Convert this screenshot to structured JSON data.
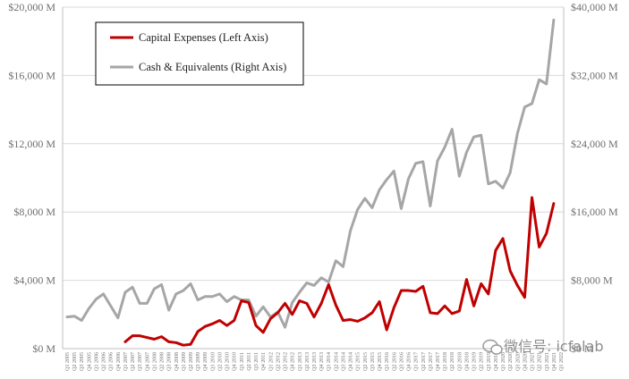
{
  "chart_data": {
    "type": "line",
    "x": [
      "Q1 2005",
      "Q2 2005",
      "Q3 2005",
      "Q4 2005",
      "Q1 2006",
      "Q2 2006",
      "Q3 2006",
      "Q4 2006",
      "Q1 2007",
      "Q2 2007",
      "Q3 2007",
      "Q4 2007",
      "Q1 2008",
      "Q2 2008",
      "Q3 2008",
      "Q4 2008",
      "Q1 2009",
      "Q2 2009",
      "Q3 2009",
      "Q4 2009",
      "Q1 2010",
      "Q2 2010",
      "Q3 2010",
      "Q4 2010",
      "Q1 2011",
      "Q2 2011",
      "Q3 2011",
      "Q4 2011",
      "Q1 2012",
      "Q2 2012",
      "Q3 2012",
      "Q4 2012",
      "Q1 2013",
      "Q2 2013",
      "Q3 2013",
      "Q4 2013",
      "Q1 2014",
      "Q2 2014",
      "Q3 2014",
      "Q4 2014",
      "Q1 2015",
      "Q2 2015",
      "Q3 2015",
      "Q4 2015",
      "Q1 2016",
      "Q2 2016",
      "Q3 2016",
      "Q4 2016",
      "Q1 2017",
      "Q2 2017",
      "Q3 2017",
      "Q4 2017",
      "Q1 2018",
      "Q2 2018",
      "Q3 2018",
      "Q4 2018",
      "Q1 2019",
      "Q2 2019",
      "Q3 2019",
      "Q4 2019",
      "Q1 2020",
      "Q2 2020",
      "Q3 2020",
      "Q4 2020",
      "Q1 2021",
      "Q2 2021",
      "Q3 2021",
      "Q4 2021",
      "Q1 2022"
    ],
    "series": [
      {
        "name": "Capital Expenses (Left Axis)",
        "axis": "left",
        "color": "#c00000",
        "values": [
          null,
          null,
          null,
          null,
          null,
          null,
          null,
          null,
          400,
          750,
          750,
          650,
          550,
          700,
          400,
          350,
          200,
          250,
          1000,
          1300,
          1450,
          1650,
          1350,
          1650,
          2800,
          2700,
          1350,
          950,
          1750,
          2100,
          2650,
          2000,
          2800,
          2650,
          1850,
          2650,
          3750,
          2550,
          1650,
          1700,
          1600,
          1800,
          2100,
          2750,
          1100,
          2400,
          3400,
          3400,
          3350,
          3650,
          2100,
          2050,
          2500,
          2050,
          2200,
          4050,
          2500,
          3800,
          3200,
          5750,
          6450,
          4550,
          3700,
          3000,
          8850,
          5950,
          6750,
          8500,
          null
        ]
      },
      {
        "name": "Cash & Equivalents (Right Axis)",
        "axis": "right",
        "color": "#a6a6a6",
        "values": [
          3700,
          3800,
          3300,
          4700,
          5800,
          6400,
          5000,
          3600,
          6600,
          7200,
          5300,
          5300,
          7000,
          7500,
          4500,
          6400,
          6800,
          7600,
          5700,
          6100,
          6100,
          6400,
          5500,
          6100,
          5700,
          5700,
          3800,
          4900,
          3700,
          4300,
          2500,
          5400,
          6600,
          7700,
          7400,
          8300,
          7800,
          10300,
          9600,
          13800,
          16300,
          17600,
          16500,
          18600,
          19800,
          20800,
          16400,
          19900,
          21700,
          21900,
          16700,
          22000,
          23600,
          25700,
          20200,
          23000,
          24800,
          25000,
          19300,
          19600,
          18800,
          20600,
          25200,
          28300,
          28700,
          31500,
          31000,
          38500,
          null
        ]
      }
    ],
    "y_left": {
      "ylim": [
        0,
        20000
      ],
      "ticks": [
        "$0 M",
        "$4,000 M",
        "$8,000 M",
        "$12,000 M",
        "$16,000 M",
        "$20,000 M"
      ]
    },
    "y_right": {
      "ylim": [
        0,
        40000
      ],
      "ticks": [
        "$0 M",
        "$8,000 M",
        "$16,000 M",
        "$24,000 M",
        "$32,000 M",
        "$40,000 M"
      ]
    },
    "grid": "horizontal",
    "legend": {
      "placement": "top-left",
      "entries": [
        "Capital Expenses (Left Axis)",
        "Cash & Equivalents (Right Axis)"
      ]
    },
    "watermark": "微信号: icfalab"
  }
}
